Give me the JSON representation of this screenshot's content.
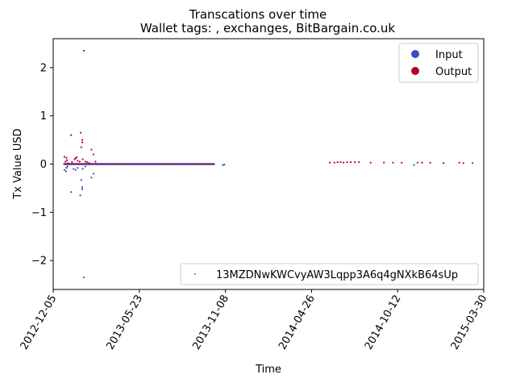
{
  "chart_data": {
    "type": "scatter",
    "title": "Transcations over time",
    "subtitle": "Wallet tags: , exchanges, BitBargain.co.uk",
    "xlabel": "Time",
    "ylabel": "Tx Value USD",
    "x_range": [
      "2012-12-05",
      "2015-03-30"
    ],
    "ylim": [
      -2.6,
      2.6
    ],
    "x_tick_labels": [
      "2012-12-05",
      "2013-05-23",
      "2013-11-08",
      "2014-04-26",
      "2014-10-12",
      "2015-03-30"
    ],
    "y_tick_values": [
      -2,
      -1,
      0,
      1,
      2
    ],
    "y_tick_labels": [
      "−2",
      "−1",
      "0",
      "1",
      "2"
    ],
    "grid": false,
    "legend_position": "top-right",
    "legend": [
      {
        "label": "Input",
        "color": "#3b4cc0"
      },
      {
        "label": "Output",
        "color": "#b40426"
      }
    ],
    "address_legend": {
      "label": "13MZDNwKWCvyAW3Lqpp3A6q4gNXkB64sUp",
      "color": "#2ca02c",
      "position": "lower-right"
    },
    "series": [
      {
        "name": "Output",
        "color": "#b40426",
        "points": [
          [
            "2012-12-27",
            0.15
          ],
          [
            "2012-12-29",
            0.05
          ],
          [
            "2012-12-31",
            0.13
          ],
          [
            "2013-01-01",
            0.08
          ],
          [
            "2013-01-03",
            0.02
          ],
          [
            "2013-01-09",
            0.6
          ],
          [
            "2013-01-11",
            0.04
          ],
          [
            "2013-01-16",
            0.1
          ],
          [
            "2013-01-18",
            0.12
          ],
          [
            "2013-01-20",
            0.14
          ],
          [
            "2013-01-22",
            0.07
          ],
          [
            "2013-01-26",
            0.05
          ],
          [
            "2013-01-28",
            0.65
          ],
          [
            "2013-01-29",
            0.35
          ],
          [
            "2013-01-31",
            0.5
          ],
          [
            "2013-01-31",
            0.45
          ],
          [
            "2013-02-01",
            0.1
          ],
          [
            "2013-02-03",
            2.35
          ],
          [
            "2013-02-06",
            0.05
          ],
          [
            "2013-02-10",
            0.04
          ],
          [
            "2013-02-14",
            0.02
          ],
          [
            "2013-02-18",
            0.3
          ],
          [
            "2013-02-22",
            0.2
          ],
          [
            "2013-02-26",
            0.05
          ],
          [
            "2014-06-01",
            0.03
          ],
          [
            "2014-06-10",
            0.03
          ],
          [
            "2014-06-16",
            0.04
          ],
          [
            "2014-06-22",
            0.04
          ],
          [
            "2014-06-28",
            0.03
          ],
          [
            "2014-07-05",
            0.04
          ],
          [
            "2014-07-12",
            0.04
          ],
          [
            "2014-07-20",
            0.04
          ],
          [
            "2014-07-28",
            0.04
          ],
          [
            "2014-08-20",
            0.03
          ],
          [
            "2014-09-15",
            0.03
          ],
          [
            "2014-10-03",
            0.03
          ],
          [
            "2014-10-20",
            0.03
          ],
          [
            "2014-11-20",
            0.03
          ],
          [
            "2014-11-29",
            0.03
          ],
          [
            "2014-12-15",
            0.03
          ],
          [
            "2015-01-10",
            0.02
          ],
          [
            "2015-02-10",
            0.03
          ],
          [
            "2015-02-18",
            0.02
          ],
          [
            "2015-03-08",
            0.02
          ]
        ]
      },
      {
        "name": "Input",
        "color": "#3b4cc0",
        "points": [
          [
            "2012-12-27",
            -0.12
          ],
          [
            "2012-12-30",
            -0.15
          ],
          [
            "2012-12-31",
            -0.08
          ],
          [
            "2013-01-02",
            -0.05
          ],
          [
            "2013-01-09",
            -0.58
          ],
          [
            "2013-01-14",
            -0.1
          ],
          [
            "2013-01-18",
            -0.12
          ],
          [
            "2013-01-22",
            -0.08
          ],
          [
            "2013-01-27",
            -0.65
          ],
          [
            "2013-01-29",
            -0.33
          ],
          [
            "2013-01-31",
            -0.48
          ],
          [
            "2013-01-31",
            -0.52
          ],
          [
            "2013-02-01",
            -0.1
          ],
          [
            "2013-02-03",
            -2.35
          ],
          [
            "2013-02-06",
            -0.05
          ],
          [
            "2013-02-18",
            -0.28
          ],
          [
            "2013-02-22",
            -0.2
          ],
          [
            "2013-11-03",
            -0.02
          ],
          [
            "2013-11-06",
            -0.01
          ],
          [
            "2014-11-13",
            -0.02
          ]
        ]
      }
    ],
    "dense_band": {
      "from": "2012-12-25",
      "to": "2013-10-18",
      "value": 0,
      "color": "#b40426"
    }
  }
}
